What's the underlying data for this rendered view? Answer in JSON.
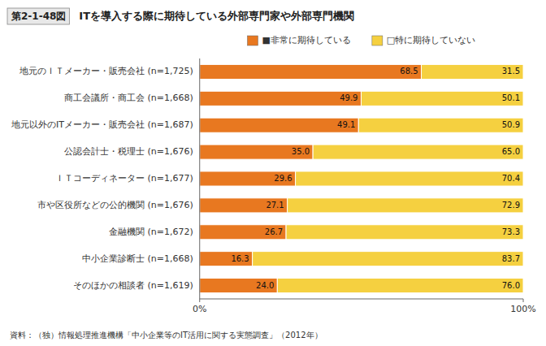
{
  "chart_data": {
    "type": "bar",
    "orientation": "horizontal",
    "stacked": true,
    "title": "ITを導入する際に期待している外部専門家や外部専門機関",
    "annotations": [
      "第2-1-48図",
      "資料：（独）情報処理推進機構「中小企業等のIT活用に関する実態調査」（2012年）"
    ],
    "categories": [
      "地元のＩＴメーカー・販売会社 (n=1,725)",
      "商工会議所・商工会 (n=1,668)",
      "地元以外のITメーカー・販売会社 (n=1,687)",
      "公認会計士・税理士 (n=1,676)",
      "ＩＴコーディネーター (n=1,677)",
      "市や区役所などの公的機関 (n=1,676)",
      "金融機関 (n=1,672)",
      "中小企業診断士 (n=1,668)",
      "そのほかの相談者 (n=1,619)"
    ],
    "series": [
      {
        "name": "■非常に期待している",
        "color": "#E87820",
        "values": [
          68.5,
          49.9,
          49.1,
          35.0,
          29.6,
          27.1,
          26.7,
          16.3,
          24.0
        ],
        "value_labels": [
          "68.5",
          "49.9",
          "49.1",
          "35.0",
          "29.6",
          "27.1",
          "26.7",
          "16.3",
          "24.0"
        ]
      },
      {
        "name": "□特に期待していない",
        "color": "#F5D040",
        "values": [
          31.5,
          50.1,
          50.9,
          65.0,
          70.4,
          72.9,
          73.3,
          83.7,
          76.0
        ],
        "value_labels": [
          "31.5",
          "50.1",
          "50.9",
          "65.0",
          "70.4",
          "72.9",
          "73.3",
          "83.7",
          "76.0"
        ]
      }
    ],
    "xlim": [
      0,
      100
    ],
    "xticks": [
      {
        "value": 0,
        "label": "0%"
      },
      {
        "value": 100,
        "label": "100%"
      }
    ],
    "data_labels": true,
    "grid": false,
    "legend": "top"
  }
}
